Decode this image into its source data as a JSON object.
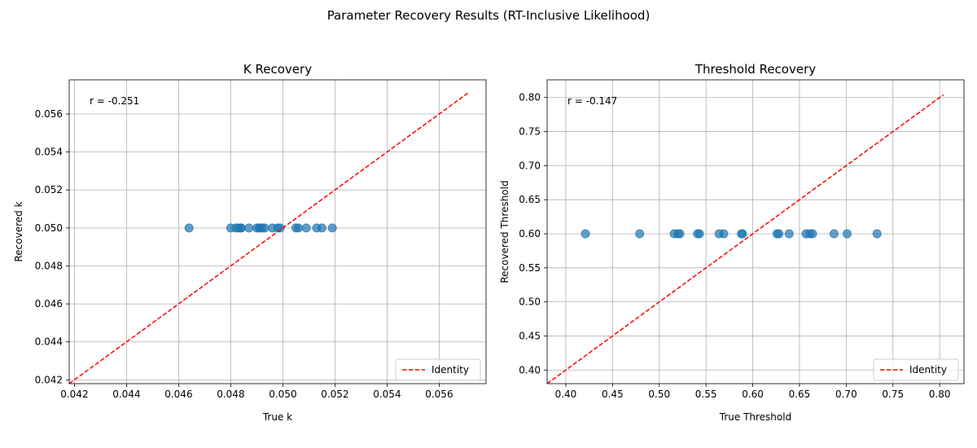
{
  "figure": {
    "suptitle": "Parameter Recovery Results (RT-Inclusive Likelihood)"
  },
  "chart_data": [
    {
      "type": "scatter",
      "title": "K Recovery",
      "xlabel": "True k",
      "ylabel": "Recovered k",
      "xlim": [
        0.0418,
        0.0578
      ],
      "ylim": [
        0.0418,
        0.0578
      ],
      "xticks": [
        "0.042",
        "0.044",
        "0.046",
        "0.048",
        "0.050",
        "0.052",
        "0.054",
        "0.056"
      ],
      "yticks": [
        "0.042",
        "0.044",
        "0.046",
        "0.048",
        "0.050",
        "0.052",
        "0.054",
        "0.056"
      ],
      "xtick_values": [
        0.042,
        0.044,
        0.046,
        0.048,
        0.05,
        0.052,
        0.054,
        0.056
      ],
      "ytick_values": [
        0.042,
        0.044,
        0.046,
        0.048,
        0.05,
        0.052,
        0.054,
        0.056
      ],
      "grid": true,
      "annotation": "r = -0.251",
      "series": [
        {
          "name": "",
          "color": "#1f77b4",
          "x": [
            0.0464,
            0.048,
            0.0482,
            0.0483,
            0.0484,
            0.0484,
            0.0487,
            0.049,
            0.0491,
            0.0491,
            0.0492,
            0.0493,
            0.0496,
            0.0498,
            0.0499,
            0.0505,
            0.0506,
            0.0509,
            0.0513,
            0.0515,
            0.0519
          ],
          "y": [
            0.05,
            0.05,
            0.05,
            0.05,
            0.05,
            0.05,
            0.05,
            0.05,
            0.05,
            0.05,
            0.05,
            0.05,
            0.05,
            0.05,
            0.05,
            0.05,
            0.05,
            0.05,
            0.05,
            0.05,
            0.05
          ]
        }
      ],
      "identity_line": {
        "name": "Identity",
        "color": "#ff0000",
        "from": 0.0418,
        "to": 0.0571
      },
      "legend": {
        "placement": "lower-right",
        "entries": [
          "Identity"
        ]
      }
    },
    {
      "type": "scatter",
      "title": "Threshold Recovery",
      "xlabel": "True Threshold",
      "ylabel": "Recovered Threshold",
      "xlim": [
        0.38,
        0.826
      ],
      "ylim": [
        0.38,
        0.826
      ],
      "xticks": [
        "0.40",
        "0.45",
        "0.50",
        "0.55",
        "0.60",
        "0.65",
        "0.70",
        "0.75",
        "0.80"
      ],
      "yticks": [
        "0.40",
        "0.45",
        "0.50",
        "0.55",
        "0.60",
        "0.65",
        "0.70",
        "0.75",
        "0.80"
      ],
      "xtick_values": [
        0.4,
        0.45,
        0.5,
        0.55,
        0.6,
        0.65,
        0.7,
        0.75,
        0.8
      ],
      "ytick_values": [
        0.4,
        0.45,
        0.5,
        0.55,
        0.6,
        0.65,
        0.7,
        0.75,
        0.8
      ],
      "grid": true,
      "annotation": "r = -0.147",
      "series": [
        {
          "name": "",
          "color": "#1f77b4",
          "x": [
            0.421,
            0.479,
            0.516,
            0.52,
            0.522,
            0.541,
            0.543,
            0.564,
            0.569,
            0.588,
            0.589,
            0.626,
            0.628,
            0.639,
            0.657,
            0.661,
            0.664,
            0.687,
            0.701,
            0.733
          ],
          "y": [
            0.6,
            0.6,
            0.6,
            0.6,
            0.6,
            0.6,
            0.6,
            0.6,
            0.6,
            0.6,
            0.6,
            0.6,
            0.6,
            0.6,
            0.6,
            0.6,
            0.6,
            0.6,
            0.6,
            0.6
          ]
        }
      ],
      "identity_line": {
        "name": "Identity",
        "color": "#ff0000",
        "from": 0.38,
        "to": 0.804
      },
      "legend": {
        "placement": "lower-right",
        "entries": [
          "Identity"
        ]
      }
    }
  ]
}
